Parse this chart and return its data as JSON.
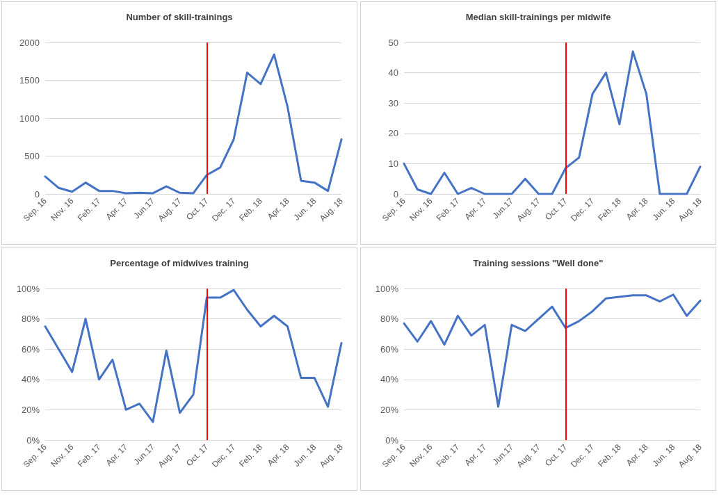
{
  "chart_data": [
    {
      "type": "line",
      "title": "Number of skill-trainings",
      "categories": [
        "Sep. 16",
        null,
        "Nov. 16",
        null,
        "Feb. 17",
        null,
        "Apr. 17",
        null,
        "Jun.17",
        null,
        "Aug. 17",
        null,
        "Oct. 17",
        null,
        "Dec. 17",
        null,
        "Feb. 18",
        null,
        "Apr. 18",
        null,
        "Jun. 18",
        null,
        "Aug. 18"
      ],
      "series": [
        {
          "color": "#4472c4",
          "values": [
            230,
            80,
            30,
            150,
            40,
            40,
            10,
            15,
            10,
            100,
            15,
            10,
            250,
            350,
            720,
            1600,
            1450,
            1840,
            1150,
            175,
            150,
            40,
            720
          ]
        }
      ],
      "ylim": [
        0,
        2000
      ],
      "yticks": [
        0,
        500,
        1000,
        1500,
        2000
      ],
      "grid": "y",
      "marker": "none",
      "line_style": "solid",
      "ref_lines": [
        {
          "axis": "x",
          "value": "Oct. 17",
          "label": null,
          "color": "#ff0000"
        }
      ]
    },
    {
      "type": "line",
      "title": "Median skill-trainings per midwife",
      "categories": [
        "Sep. 16",
        null,
        "Nov. 16",
        null,
        "Feb. 17",
        null,
        "Apr. 17",
        null,
        "Jun.17",
        null,
        "Aug. 17",
        null,
        "Oct. 17",
        null,
        "Dec. 17",
        null,
        "Feb. 18",
        null,
        "Apr. 18",
        null,
        "Jun. 18",
        null,
        "Aug. 18"
      ],
      "series": [
        {
          "color": "#4472c4",
          "values": [
            10,
            1.5,
            0,
            7,
            0,
            2,
            0,
            0,
            0,
            5,
            0,
            0,
            8.5,
            12,
            33,
            40,
            23,
            47,
            33,
            0,
            0,
            0,
            9
          ]
        }
      ],
      "ylim": [
        0,
        50
      ],
      "yticks": [
        0,
        10,
        20,
        30,
        40,
        50
      ],
      "grid": "y",
      "marker": "none",
      "line_style": "solid",
      "ref_lines": [
        {
          "axis": "x",
          "value": "Oct. 17",
          "label": null,
          "color": "#ff0000"
        }
      ]
    },
    {
      "type": "line",
      "title": "Percentage of midwives training",
      "categories": [
        "Sep. 16",
        null,
        "Nov. 16",
        null,
        "Feb. 17",
        null,
        "Apr. 17",
        null,
        "Jun.17",
        null,
        "Aug. 17",
        null,
        "Oct. 17",
        null,
        "Dec. 17",
        null,
        "Feb. 18",
        null,
        "Apr. 18",
        null,
        "Jun. 18",
        null,
        "Aug. 18"
      ],
      "series": [
        {
          "color": "#4472c4",
          "values": [
            75,
            60,
            45,
            80,
            40,
            53,
            20,
            24,
            12,
            59,
            18,
            30,
            94,
            94,
            99,
            86,
            75,
            82,
            75,
            41,
            41,
            22,
            64
          ]
        }
      ],
      "ylim": [
        0,
        100
      ],
      "yticks": [
        {
          "value": 0,
          "label": "0%"
        },
        {
          "value": 20,
          "label": "20%"
        },
        {
          "value": 40,
          "label": "40%"
        },
        {
          "value": 60,
          "label": "60%"
        },
        {
          "value": 80,
          "label": "80%"
        },
        {
          "value": 100,
          "label": "100%"
        }
      ],
      "grid": "y",
      "marker": "none",
      "line_style": "solid",
      "ref_lines": [
        {
          "axis": "x",
          "value": "Oct. 17",
          "label": null,
          "color": "#ff0000"
        }
      ]
    },
    {
      "type": "line",
      "title": "Training sessions \"Well done\"",
      "categories": [
        "Sep. 16",
        null,
        "Nov. 16",
        null,
        "Feb. 17",
        null,
        "Apr. 17",
        null,
        "Jun.17",
        null,
        "Aug. 17",
        null,
        "Oct. 17",
        null,
        "Dec. 17",
        null,
        "Feb. 18",
        null,
        "Apr. 18",
        null,
        "Jun. 18",
        null,
        "Aug. 18"
      ],
      "series": [
        {
          "color": "#4472c4",
          "values": [
            77,
            65,
            78.5,
            63,
            82,
            69,
            76,
            22,
            76,
            72,
            80,
            88,
            74,
            78.5,
            85,
            93.5,
            94.5,
            95.5,
            95.5,
            91.5,
            96,
            82,
            92
          ]
        }
      ],
      "ylim": [
        0,
        100
      ],
      "yticks": [
        {
          "value": 0,
          "label": "0%"
        },
        {
          "value": 20,
          "label": "20%"
        },
        {
          "value": 40,
          "label": "40%"
        },
        {
          "value": 60,
          "label": "60%"
        },
        {
          "value": 80,
          "label": "80%"
        },
        {
          "value": 100,
          "label": "100%"
        }
      ],
      "grid": "y",
      "marker": "none",
      "line_style": "solid",
      "ref_lines": [
        {
          "axis": "x",
          "value": "Oct. 17",
          "label": null,
          "color": "#ff0000"
        }
      ]
    }
  ]
}
